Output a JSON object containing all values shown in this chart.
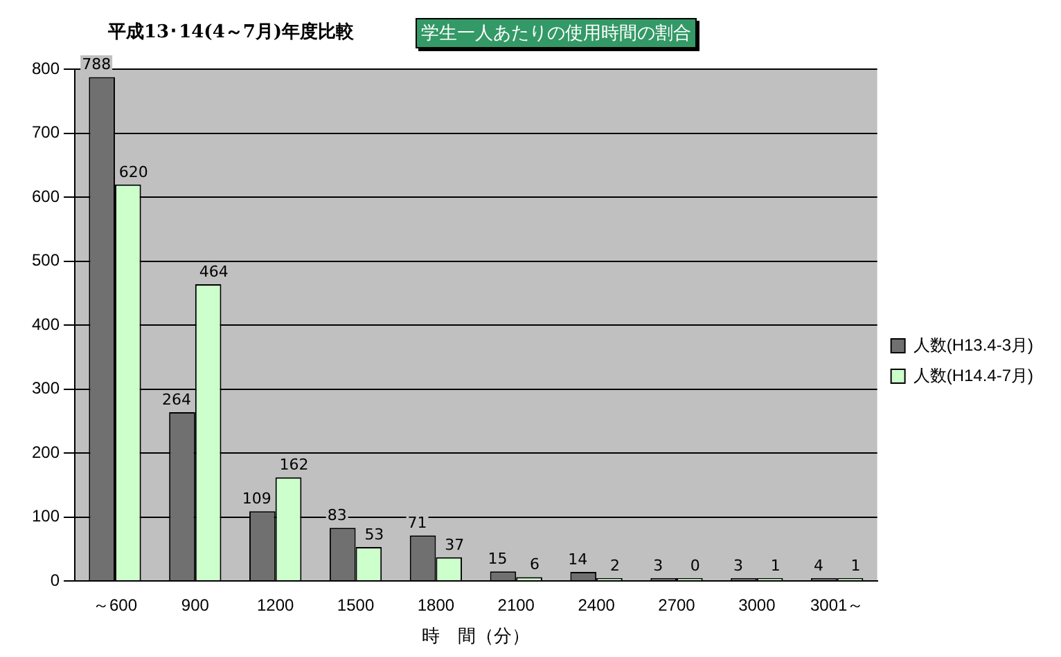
{
  "chart_data": {
    "type": "bar",
    "title": "学生一人あたりの使用時間の割合",
    "subtitle": "平成13･14(4～7月)年度比較",
    "xlabel": "時　間（分）",
    "categories": [
      "～600",
      "900",
      "1200",
      "1500",
      "1800",
      "2100",
      "2400",
      "2700",
      "3000",
      "3001～"
    ],
    "series": [
      {
        "name": "人数(H13.4-3月)",
        "color": "#707070",
        "values": [
          788,
          264,
          109,
          83,
          71,
          15,
          14,
          3,
          3,
          4
        ]
      },
      {
        "name": "人数(H14.4-7月)",
        "color": "#ccffcc",
        "values": [
          620,
          464,
          162,
          53,
          37,
          6,
          2,
          0,
          1,
          1
        ]
      }
    ],
    "ylim": [
      0,
      800
    ],
    "yticks": [
      0,
      100,
      200,
      300,
      400,
      500,
      600,
      700,
      800
    ],
    "grid": "y",
    "legend": "right",
    "data_labels": true
  }
}
